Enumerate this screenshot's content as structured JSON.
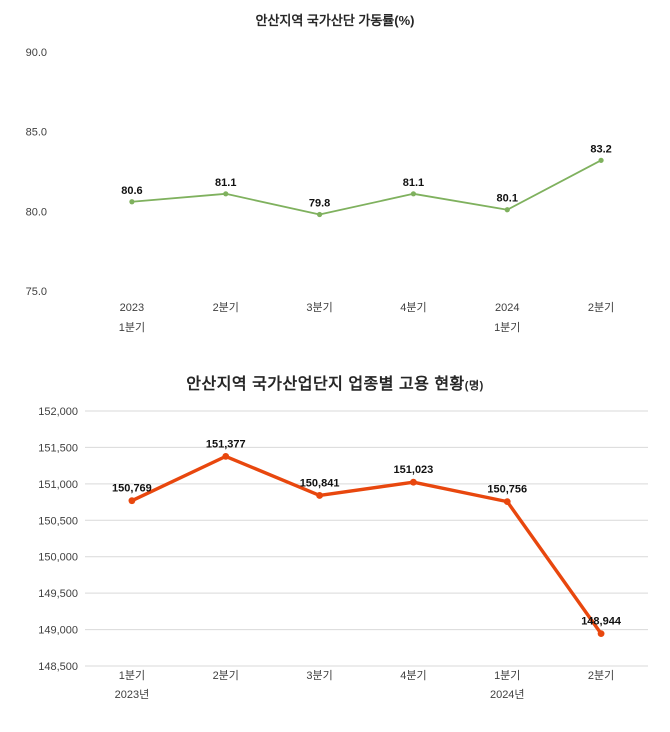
{
  "chart_data": [
    {
      "type": "line",
      "title": "안산지역 국가산단 가동률",
      "title_unit": "(%)",
      "categories": [
        [
          "2023",
          "1분기"
        ],
        [
          "2분기"
        ],
        [
          "3분기"
        ],
        [
          "4분기"
        ],
        [
          "2024",
          "1분기"
        ],
        [
          "2분기"
        ]
      ],
      "values": [
        80.6,
        81.1,
        79.8,
        81.1,
        80.1,
        83.2
      ],
      "data_labels": [
        "80.6",
        "81.1",
        "79.8",
        "81.1",
        "80.1",
        "83.2"
      ],
      "yticks": [
        90.0,
        85.0,
        80.0,
        75.0
      ],
      "ytick_labels": [
        "90.0",
        "85.0",
        "80.0",
        "75.0"
      ],
      "ylim": [
        75.0,
        90.0
      ],
      "line_color": "#7fb15e",
      "grid": false,
      "legend": "none",
      "xlabel": "",
      "ylabel": ""
    },
    {
      "type": "line",
      "title": "안산지역 국가산업단지 업종별 고용 현황",
      "title_unit": "(명)",
      "categories": [
        [
          "1분기",
          "2023년"
        ],
        [
          "2분기"
        ],
        [
          "3분기"
        ],
        [
          "4분기"
        ],
        [
          "1분기",
          "2024년"
        ],
        [
          "2분기"
        ]
      ],
      "values": [
        150769,
        151377,
        150841,
        151023,
        150756,
        148944
      ],
      "data_labels": [
        "150,769",
        "151,377",
        "150,841",
        "151,023",
        "150,756",
        "148,944"
      ],
      "yticks": [
        152000,
        151500,
        151000,
        150500,
        150000,
        149500,
        149000,
        148500
      ],
      "ytick_labels": [
        "152,000",
        "151,500",
        "151,000",
        "150,500",
        "150,000",
        "149,500",
        "149,000",
        "148,500"
      ],
      "ylim": [
        148500,
        152000
      ],
      "line_color": "#e8470e",
      "grid": true,
      "grid_color": "#d9d9d9",
      "legend": "none",
      "xlabel": "",
      "ylabel": ""
    }
  ]
}
